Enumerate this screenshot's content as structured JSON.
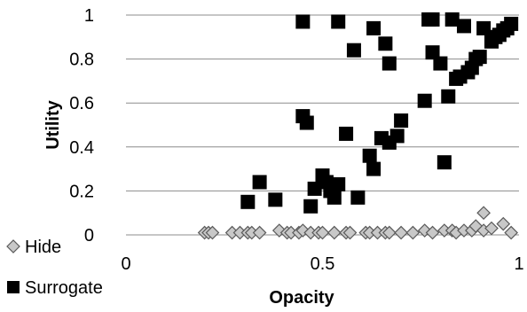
{
  "chart_data": {
    "type": "scatter",
    "xlabel": "Opacity",
    "ylabel": "Utility",
    "xlim": [
      0,
      1
    ],
    "ylim": [
      0,
      1
    ],
    "x_ticks": [
      "0",
      "0.5",
      "1"
    ],
    "y_ticks": [
      "0",
      "0.2",
      "0.4",
      "0.6",
      "0.8",
      "1"
    ],
    "grid": "horizontal",
    "legend_position": "bottom-left",
    "series": [
      {
        "name": "Hide",
        "marker": "diamond",
        "color": "#c8c8c8",
        "edge_color": "#5a5a5a",
        "points": [
          [
            0.2,
            0.01
          ],
          [
            0.21,
            0.01
          ],
          [
            0.22,
            0.01
          ],
          [
            0.27,
            0.01
          ],
          [
            0.29,
            0.01
          ],
          [
            0.31,
            0.01
          ],
          [
            0.32,
            0.01
          ],
          [
            0.34,
            0.01
          ],
          [
            0.39,
            0.02
          ],
          [
            0.41,
            0.01
          ],
          [
            0.42,
            0.01
          ],
          [
            0.44,
            0.01
          ],
          [
            0.45,
            0.02
          ],
          [
            0.47,
            0.01
          ],
          [
            0.49,
            0.01
          ],
          [
            0.5,
            0.01
          ],
          [
            0.53,
            0.01
          ],
          [
            0.56,
            0.01
          ],
          [
            0.57,
            0.01
          ],
          [
            0.61,
            0.01
          ],
          [
            0.62,
            0.01
          ],
          [
            0.64,
            0.01
          ],
          [
            0.66,
            0.01
          ],
          [
            0.67,
            0.01
          ],
          [
            0.7,
            0.01
          ],
          [
            0.73,
            0.01
          ],
          [
            0.76,
            0.02
          ],
          [
            0.78,
            0.01
          ],
          [
            0.81,
            0.02
          ],
          [
            0.83,
            0.02
          ],
          [
            0.84,
            0.01
          ],
          [
            0.86,
            0.02
          ],
          [
            0.88,
            0.02
          ],
          [
            0.89,
            0.04
          ],
          [
            0.91,
            0.02
          ],
          [
            0.91,
            0.1
          ],
          [
            0.93,
            0.03
          ],
          [
            0.96,
            0.05
          ],
          [
            0.98,
            0.01
          ]
        ]
      },
      {
        "name": "Surrogate",
        "marker": "square",
        "color": "#000000",
        "edge_color": "#000000",
        "points": [
          [
            0.31,
            0.15
          ],
          [
            0.34,
            0.24
          ],
          [
            0.38,
            0.16
          ],
          [
            0.45,
            0.97
          ],
          [
            0.45,
            0.54
          ],
          [
            0.46,
            0.51
          ],
          [
            0.47,
            0.13
          ],
          [
            0.48,
            0.21
          ],
          [
            0.5,
            0.27
          ],
          [
            0.51,
            0.24
          ],
          [
            0.52,
            0.2
          ],
          [
            0.53,
            0.17
          ],
          [
            0.54,
            0.23
          ],
          [
            0.54,
            0.97
          ],
          [
            0.56,
            0.46
          ],
          [
            0.58,
            0.84
          ],
          [
            0.59,
            0.17
          ],
          [
            0.62,
            0.36
          ],
          [
            0.63,
            0.94
          ],
          [
            0.63,
            0.3
          ],
          [
            0.65,
            0.44
          ],
          [
            0.66,
            0.87
          ],
          [
            0.67,
            0.78
          ],
          [
            0.67,
            0.42
          ],
          [
            0.69,
            0.45
          ],
          [
            0.7,
            0.52
          ],
          [
            0.76,
            0.61
          ],
          [
            0.77,
            0.98
          ],
          [
            0.78,
            0.98
          ],
          [
            0.78,
            0.83
          ],
          [
            0.8,
            0.78
          ],
          [
            0.81,
            0.33
          ],
          [
            0.82,
            0.63
          ],
          [
            0.83,
            0.98
          ],
          [
            0.84,
            0.71
          ],
          [
            0.85,
            0.72
          ],
          [
            0.86,
            0.95
          ],
          [
            0.87,
            0.74
          ],
          [
            0.88,
            0.76
          ],
          [
            0.89,
            0.8
          ],
          [
            0.9,
            0.81
          ],
          [
            0.91,
            0.94
          ],
          [
            0.93,
            0.88
          ],
          [
            0.94,
            0.9
          ],
          [
            0.95,
            0.91
          ],
          [
            0.96,
            0.93
          ],
          [
            0.97,
            0.94
          ],
          [
            0.98,
            0.96
          ]
        ]
      }
    ]
  }
}
